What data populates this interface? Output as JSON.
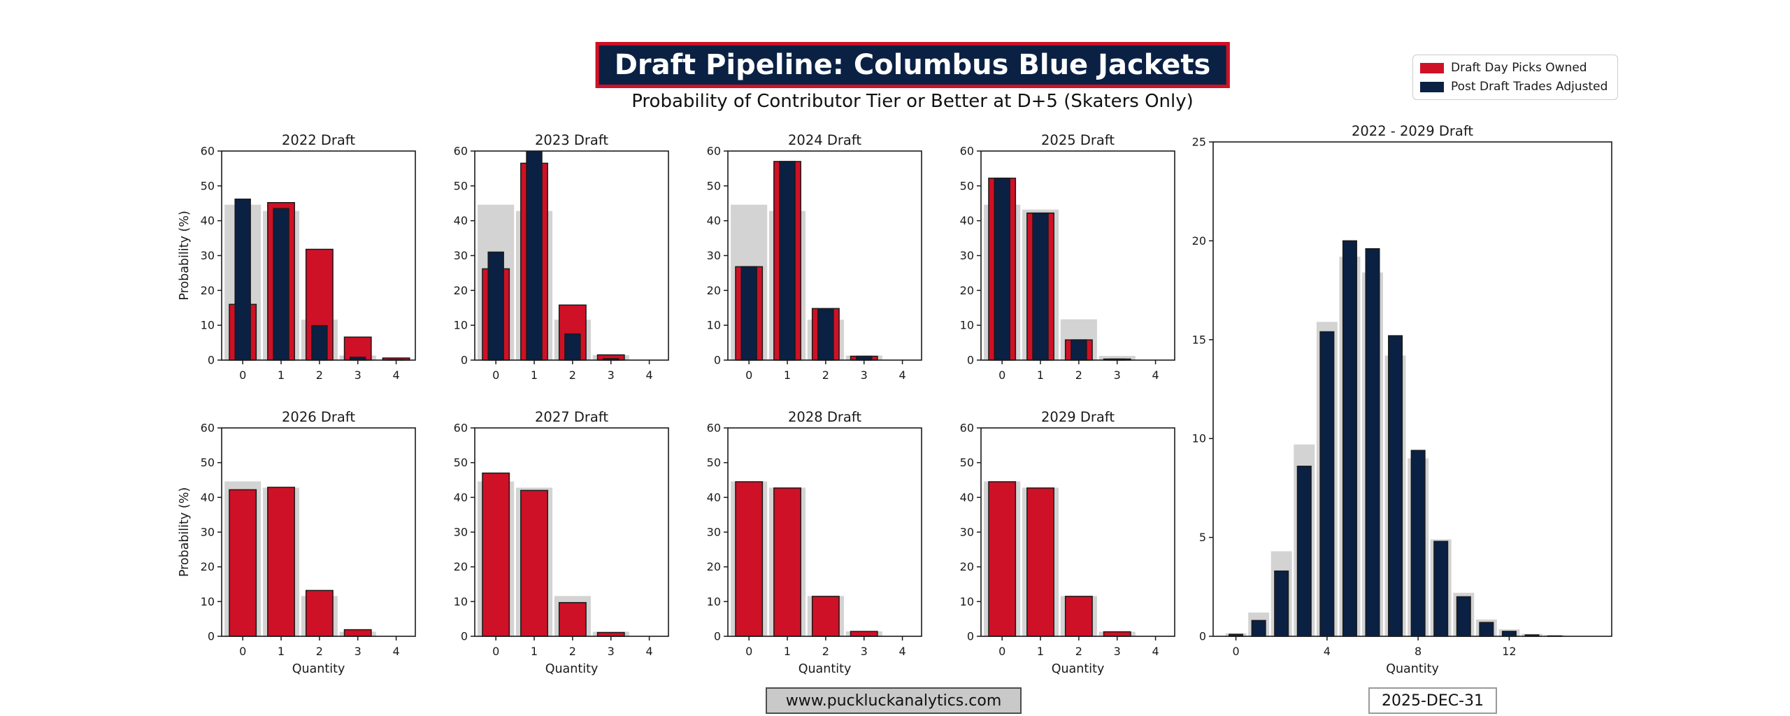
{
  "header": {
    "title": "Draft Pipeline: Columbus Blue Jackets",
    "subtitle": "Probability of Contributor Tier or Better at D+5 (Skaters Only)"
  },
  "legend": {
    "position": "top-right",
    "items": [
      {
        "label": "Draft Day Picks Owned",
        "color": "#CE1126"
      },
      {
        "label": "Post Draft Trades Adjusted",
        "color": "#0A2144"
      }
    ]
  },
  "footer": {
    "website": "www.puckluckanalytics.com",
    "date": "2025-DEC-31"
  },
  "colors": {
    "red": "#CE1126",
    "navy": "#0A2144",
    "gray_baseline": "#D3D3D3",
    "bar_edge": "#1a1a1a",
    "banner_bg": "#0A2144",
    "banner_border": "#CE1126",
    "banner_text": "#ffffff"
  },
  "chart_data": [
    {
      "type": "bar",
      "title": "2022 Draft",
      "xlabel": "",
      "ylabel": "Probability (%)",
      "categories": [
        0,
        1,
        2,
        3,
        4
      ],
      "xticks": [
        0,
        1,
        2,
        3,
        4
      ],
      "yticks": [
        0,
        10,
        20,
        30,
        40,
        50,
        60
      ],
      "ylim": [
        0,
        60
      ],
      "xlim": [
        -0.55,
        4.5
      ],
      "grid": false,
      "series": [
        {
          "name": "baseline (unlabeled gray)",
          "color": "#D3D3D3",
          "edge": false,
          "bar_width": 0.95,
          "values": [
            44.6,
            42.8,
            11.6,
            1.3,
            0.1
          ]
        },
        {
          "name": "Draft Day Picks Owned",
          "color": "#CE1126",
          "edge": true,
          "bar_width": 0.7,
          "values": [
            16.0,
            45.2,
            31.8,
            6.6,
            0.6
          ]
        },
        {
          "name": "Post Draft Trades Adjusted",
          "color": "#0A2144",
          "edge": true,
          "bar_width": 0.4,
          "values": [
            46.2,
            43.5,
            9.9,
            0.8,
            0.1
          ]
        }
      ]
    },
    {
      "type": "bar",
      "title": "2023 Draft",
      "xlabel": "",
      "ylabel": "",
      "categories": [
        0,
        1,
        2,
        3,
        4
      ],
      "xticks": [
        0,
        1,
        2,
        3,
        4
      ],
      "yticks": [
        0,
        10,
        20,
        30,
        40,
        50,
        60
      ],
      "ylim": [
        0,
        60
      ],
      "xlim": [
        -0.55,
        4.5
      ],
      "grid": false,
      "series": [
        {
          "name": "baseline (unlabeled gray)",
          "color": "#D3D3D3",
          "edge": false,
          "bar_width": 0.95,
          "values": [
            44.6,
            42.8,
            11.6,
            1.4,
            0.1
          ]
        },
        {
          "name": "Draft Day Picks Owned",
          "color": "#CE1126",
          "edge": true,
          "bar_width": 0.7,
          "values": [
            26.2,
            56.5,
            15.8,
            1.5,
            0
          ]
        },
        {
          "name": "Post Draft Trades Adjusted",
          "color": "#0A2144",
          "edge": true,
          "bar_width": 0.4,
          "values": [
            31.0,
            59.9,
            7.5,
            0.4,
            0
          ]
        }
      ]
    },
    {
      "type": "bar",
      "title": "2024 Draft",
      "xlabel": "",
      "ylabel": "",
      "categories": [
        0,
        1,
        2,
        3,
        4
      ],
      "xticks": [
        0,
        1,
        2,
        3,
        4
      ],
      "yticks": [
        0,
        10,
        20,
        30,
        40,
        50,
        60
      ],
      "ylim": [
        0,
        60
      ],
      "xlim": [
        -0.55,
        4.5
      ],
      "grid": false,
      "series": [
        {
          "name": "baseline (unlabeled gray)",
          "color": "#D3D3D3",
          "edge": false,
          "bar_width": 0.95,
          "values": [
            44.6,
            42.8,
            11.6,
            1.3,
            0.1
          ]
        },
        {
          "name": "Draft Day Picks Owned",
          "color": "#CE1126",
          "edge": true,
          "bar_width": 0.7,
          "values": [
            26.8,
            57.0,
            14.8,
            1.1,
            0
          ]
        },
        {
          "name": "Post Draft Trades Adjusted",
          "color": "#0A2144",
          "edge": true,
          "bar_width": 0.4,
          "values": [
            26.8,
            57.0,
            14.8,
            1.1,
            0
          ]
        }
      ]
    },
    {
      "type": "bar",
      "title": "2025 Draft",
      "xlabel": "",
      "ylabel": "",
      "categories": [
        0,
        1,
        2,
        3,
        4
      ],
      "xticks": [
        0,
        1,
        2,
        3,
        4
      ],
      "yticks": [
        0,
        10,
        20,
        30,
        40,
        50,
        60
      ],
      "ylim": [
        0,
        60
      ],
      "xlim": [
        -0.55,
        4.5
      ],
      "grid": false,
      "series": [
        {
          "name": "baseline (unlabeled gray)",
          "color": "#D3D3D3",
          "edge": false,
          "bar_width": 0.95,
          "values": [
            44.6,
            43.2,
            11.7,
            1.2,
            0.1
          ]
        },
        {
          "name": "Draft Day Picks Owned",
          "color": "#CE1126",
          "edge": true,
          "bar_width": 0.7,
          "values": [
            52.2,
            42.2,
            5.8,
            0.3,
            0
          ]
        },
        {
          "name": "Post Draft Trades Adjusted",
          "color": "#0A2144",
          "edge": true,
          "bar_width": 0.4,
          "values": [
            52.2,
            42.2,
            5.8,
            0.3,
            0
          ]
        }
      ]
    },
    {
      "type": "bar",
      "title": "2026 Draft",
      "xlabel": "Quantity",
      "ylabel": "Probability (%)",
      "categories": [
        0,
        1,
        2,
        3,
        4
      ],
      "xticks": [
        0,
        1,
        2,
        3,
        4
      ],
      "yticks": [
        0,
        10,
        20,
        30,
        40,
        50,
        60
      ],
      "ylim": [
        0,
        60
      ],
      "xlim": [
        -0.55,
        4.5
      ],
      "grid": false,
      "series": [
        {
          "name": "baseline (unlabeled gray)",
          "color": "#D3D3D3",
          "edge": false,
          "bar_width": 0.95,
          "values": [
            44.6,
            42.8,
            11.6,
            1.3,
            0.1
          ]
        },
        {
          "name": "Draft Day Picks Owned",
          "color": "#CE1126",
          "edge": true,
          "bar_width": 0.7,
          "values": [
            42.2,
            42.9,
            13.2,
            1.9,
            0
          ]
        },
        {
          "name": "Post Draft Trades Adjusted",
          "color": "#0A2144",
          "edge": true,
          "bar_width": 0.4,
          "values": null
        }
      ]
    },
    {
      "type": "bar",
      "title": "2027 Draft",
      "xlabel": "Quantity",
      "ylabel": "",
      "categories": [
        0,
        1,
        2,
        3,
        4
      ],
      "xticks": [
        0,
        1,
        2,
        3,
        4
      ],
      "yticks": [
        0,
        10,
        20,
        30,
        40,
        50,
        60
      ],
      "ylim": [
        0,
        60
      ],
      "xlim": [
        -0.55,
        4.5
      ],
      "grid": false,
      "series": [
        {
          "name": "baseline (unlabeled gray)",
          "color": "#D3D3D3",
          "edge": false,
          "bar_width": 0.95,
          "values": [
            44.6,
            42.8,
            11.6,
            1.3,
            0.1
          ]
        },
        {
          "name": "Draft Day Picks Owned",
          "color": "#CE1126",
          "edge": true,
          "bar_width": 0.7,
          "values": [
            47.0,
            42.0,
            9.7,
            1.1,
            0
          ]
        },
        {
          "name": "Post Draft Trades Adjusted",
          "color": "#0A2144",
          "edge": true,
          "bar_width": 0.4,
          "values": null
        }
      ]
    },
    {
      "type": "bar",
      "title": "2028 Draft",
      "xlabel": "Quantity",
      "ylabel": "",
      "categories": [
        0,
        1,
        2,
        3,
        4
      ],
      "xticks": [
        0,
        1,
        2,
        3,
        4
      ],
      "yticks": [
        0,
        10,
        20,
        30,
        40,
        50,
        60
      ],
      "ylim": [
        0,
        60
      ],
      "xlim": [
        -0.55,
        4.5
      ],
      "grid": false,
      "series": [
        {
          "name": "baseline (unlabeled gray)",
          "color": "#D3D3D3",
          "edge": false,
          "bar_width": 0.95,
          "values": [
            44.6,
            42.8,
            11.6,
            1.4,
            0.1
          ]
        },
        {
          "name": "Draft Day Picks Owned",
          "color": "#CE1126",
          "edge": true,
          "bar_width": 0.7,
          "values": [
            44.5,
            42.7,
            11.5,
            1.4,
            0
          ]
        },
        {
          "name": "Post Draft Trades Adjusted",
          "color": "#0A2144",
          "edge": true,
          "bar_width": 0.4,
          "values": null
        }
      ]
    },
    {
      "type": "bar",
      "title": "2029 Draft",
      "xlabel": "Quantity",
      "ylabel": "",
      "categories": [
        0,
        1,
        2,
        3,
        4
      ],
      "xticks": [
        0,
        1,
        2,
        3,
        4
      ],
      "yticks": [
        0,
        10,
        20,
        30,
        40,
        50,
        60
      ],
      "ylim": [
        0,
        60
      ],
      "xlim": [
        -0.55,
        4.5
      ],
      "grid": false,
      "series": [
        {
          "name": "baseline (unlabeled gray)",
          "color": "#D3D3D3",
          "edge": false,
          "bar_width": 0.95,
          "values": [
            44.6,
            42.8,
            11.6,
            1.3,
            0.1
          ]
        },
        {
          "name": "Draft Day Picks Owned",
          "color": "#CE1126",
          "edge": true,
          "bar_width": 0.7,
          "values": [
            44.5,
            42.7,
            11.5,
            1.3,
            0
          ]
        },
        {
          "name": "Post Draft Trades Adjusted",
          "color": "#0A2144",
          "edge": true,
          "bar_width": 0.4,
          "values": null
        }
      ]
    },
    {
      "type": "bar",
      "title": "2022 - 2029 Draft",
      "xlabel": "Quantity",
      "ylabel": "",
      "categories": [
        0,
        1,
        2,
        3,
        4,
        5,
        6,
        7,
        8,
        9,
        10,
        11,
        12,
        13,
        14
      ],
      "xticks": [
        0,
        4,
        8,
        12
      ],
      "yticks": [
        0,
        5,
        10,
        15,
        20,
        25
      ],
      "ylim": [
        0,
        25
      ],
      "xlim": [
        -1.0,
        16.5
      ],
      "grid": false,
      "series": [
        {
          "name": "baseline (unlabeled gray)",
          "color": "#D3D3D3",
          "edge": false,
          "bar_width": 0.92,
          "values": [
            0.15,
            1.2,
            4.3,
            9.7,
            15.9,
            19.2,
            18.4,
            14.2,
            9.0,
            4.9,
            2.2,
            0.85,
            0.35,
            0.12,
            0.05
          ]
        },
        {
          "name": "Post Draft Trades Adjusted",
          "color": "#0A2144",
          "edge": true,
          "bar_width": 0.6,
          "values": [
            0.1,
            0.8,
            3.3,
            8.6,
            15.4,
            20.0,
            19.6,
            15.2,
            9.4,
            4.8,
            2.0,
            0.7,
            0.25,
            0.07,
            0.02
          ]
        }
      ]
    }
  ]
}
